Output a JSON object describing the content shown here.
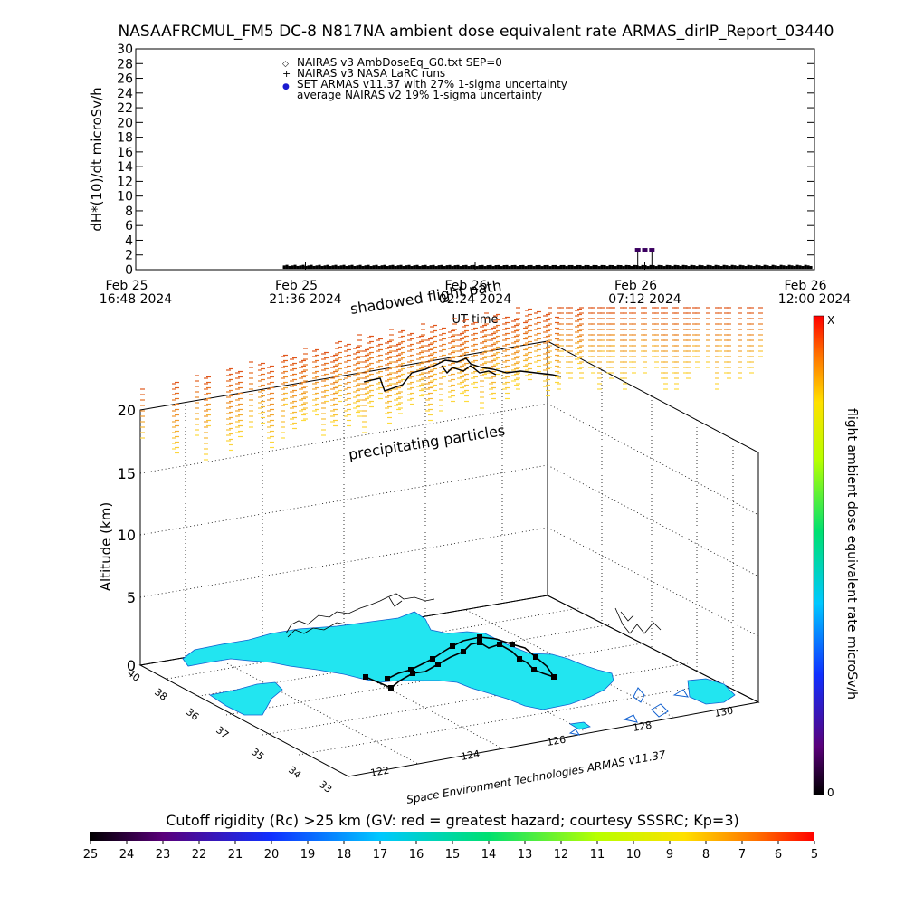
{
  "page": {
    "title": "NASAAFRCMUL_FM5 DC-8   N817NA ambient dose equivalent rate ARMAS_dirIP_Report_03440",
    "footer_credit": "Space Environment Technologies ARMAS v11.37"
  },
  "colors": {
    "nairas_v3_ambdose": "#000000",
    "nairas_v3_larc": "#000000",
    "armas_points": "#3b0060",
    "land": "#22e5f0",
    "coast": "#0033cc",
    "track": "#000000",
    "particles_top": "#e0561c",
    "particles_bottom": "#ffe040"
  },
  "chart_data": [
    {
      "type": "scatter",
      "title": "NASAAFRCMUL_FM5 DC-8   N817NA ambient dose equivalent rate ARMAS_dirIP_Report_03440",
      "ylabel": "dH*(10)/dt microSv/h",
      "xlabel": "UT time",
      "ylim": [
        0,
        30
      ],
      "yticks": [
        0,
        2,
        4,
        6,
        8,
        10,
        12,
        14,
        16,
        18,
        20,
        22,
        24,
        26,
        28,
        30
      ],
      "xtick_labels": [
        {
          "line1": "Feb 25",
          "line2": "16:48 2024"
        },
        {
          "line1": "Feb 25",
          "line2": "21:36 2024"
        },
        {
          "line1": "Feb 26",
          "line2": "02:24 2024"
        },
        {
          "line1": "Feb 26",
          "line2": "07:12 2024"
        },
        {
          "line1": "Feb 26",
          "line2": "12:00 2024"
        }
      ],
      "legend": [
        {
          "marker": "◇",
          "label": "NAIRAS v3 AmbDoseEq_G0.txt SEP=0"
        },
        {
          "marker": "+",
          "label": "NAIRAS v3 NASA LaRC runs"
        },
        {
          "marker": "●",
          "label": "SET ARMAS v11.37 with 27% 1-sigma uncertainty"
        },
        {
          "marker": "",
          "label": "average NAIRAS v2 19% 1-sigma uncertainty"
        }
      ],
      "legend_position": "top-center",
      "series": [
        {
          "name": "NAIRAS v3 AmbDoseEq_G0.txt SEP=0",
          "x_hours": [
            4.2,
            6,
            8,
            10,
            12,
            14,
            16,
            18,
            19.1
          ],
          "values": [
            0.3,
            0.3,
            0.3,
            0.4,
            0.3,
            0.3,
            0.3,
            0.3,
            0.3
          ]
        },
        {
          "name": "SET ARMAS v11.37 with 27% 1-sigma uncertainty",
          "x_hours": [
            14.2,
            14.4,
            14.6
          ],
          "values": [
            2.7,
            2.7,
            2.7
          ]
        }
      ]
    },
    {
      "type": "scatter",
      "zlabel": "Altitude (km)",
      "zticks": [
        0,
        5,
        10,
        15,
        20
      ],
      "lat_ticks": [
        40,
        38,
        36,
        37,
        35,
        34,
        33
      ],
      "lon_ticks": [
        122,
        124,
        126,
        128,
        130
      ],
      "annotations": [
        "shadowed flight path",
        "precipitating particles"
      ]
    }
  ],
  "colorbar_right": {
    "label": "flight ambient dose equivalent rate microSv/h",
    "top_label": "X",
    "bottom_label": "0"
  },
  "colorbar_bottom": {
    "title": "Cutoff rigidity (Rc) >25 km (GV: red = greatest hazard; courtesy SSSRC; Kp=3)",
    "ticks": [
      "25",
      "24",
      "23",
      "22",
      "21",
      "20",
      "19",
      "18",
      "17",
      "16",
      "15",
      "14",
      "13",
      "12",
      "11",
      "10",
      "9",
      "8",
      "7",
      "6",
      "5"
    ]
  }
}
